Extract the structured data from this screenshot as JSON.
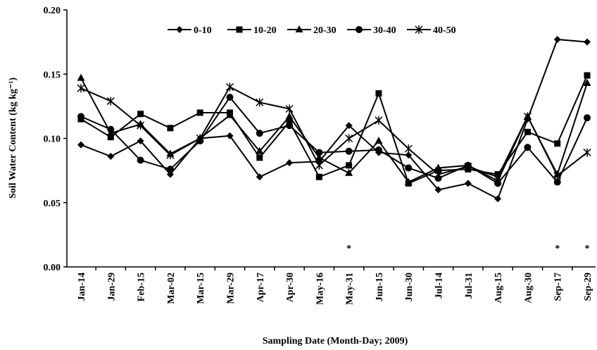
{
  "chart_data": {
    "type": "line",
    "x_label": "Sampling Date (Month-Day; 2009)",
    "y_label": "Soil Water Content (kg kg⁻¹)",
    "categories": [
      "Jan-14",
      "Jan-29",
      "Feb-15",
      "Mar-02",
      "Mar-15",
      "Mar-29",
      "Apr-17",
      "Apr-30",
      "May-16",
      "May-31",
      "Jun-15",
      "Jun-30",
      "Jul-14",
      "Jul-31",
      "Aug-15",
      "Aug-30",
      "Sep-17",
      "Sep-29"
    ],
    "series": [
      {
        "name": "0-10",
        "color": "#000000",
        "marker": "diamond",
        "values": [
          0.095,
          0.086,
          0.098,
          0.072,
          0.1,
          0.102,
          0.07,
          0.081,
          0.082,
          0.11,
          0.089,
          0.087,
          0.06,
          0.065,
          0.053,
          0.115,
          0.177,
          0.175
        ]
      },
      {
        "name": "10-20",
        "color": "#000000",
        "marker": "square",
        "values": [
          0.115,
          0.101,
          0.119,
          0.108,
          0.12,
          0.12,
          0.085,
          0.113,
          0.07,
          0.079,
          0.135,
          0.065,
          0.075,
          0.076,
          0.072,
          0.105,
          0.096,
          0.149
        ]
      },
      {
        "name": "20-30",
        "color": "#000000",
        "marker": "triangle",
        "values": [
          0.147,
          0.104,
          0.111,
          0.088,
          0.1,
          0.118,
          0.09,
          0.117,
          0.085,
          0.073,
          0.098,
          0.066,
          0.077,
          0.079,
          0.067,
          0.117,
          0.072,
          0.143
        ]
      },
      {
        "name": "30-40",
        "color": "#000000",
        "marker": "circle",
        "values": [
          0.117,
          0.107,
          0.083,
          0.076,
          0.098,
          0.132,
          0.104,
          0.11,
          0.089,
          0.09,
          0.091,
          0.077,
          0.069,
          0.079,
          0.065,
          0.093,
          0.066,
          0.116
        ]
      },
      {
        "name": "40-50",
        "color": "#000000",
        "marker": "star",
        "values": [
          0.139,
          0.129,
          0.11,
          0.087,
          0.1,
          0.14,
          0.128,
          0.123,
          0.079,
          0.1,
          0.114,
          0.092,
          0.072,
          0.078,
          0.07,
          0.117,
          0.071,
          0.089
        ]
      }
    ],
    "significance": [
      null,
      null,
      null,
      null,
      null,
      null,
      null,
      null,
      null,
      "*",
      null,
      null,
      null,
      null,
      null,
      null,
      "*",
      "*"
    ],
    "ylim": [
      0,
      0.2
    ],
    "yticks": [
      {
        "value": 0,
        "label": "0.00"
      },
      {
        "value": 0.05,
        "label": "0.05"
      },
      {
        "value": 0.1,
        "label": "0.10"
      },
      {
        "value": 0.15,
        "label": "0.15"
      },
      {
        "value": 0.2,
        "label": "0.20"
      }
    ],
    "legend": "top",
    "grid": false
  }
}
